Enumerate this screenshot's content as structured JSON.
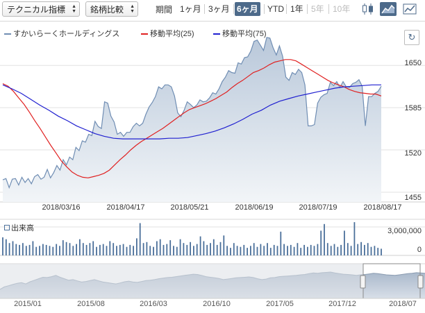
{
  "toolbar": {
    "technical_label": "テクニカル指標",
    "compare_label": "銘柄比較",
    "period_label": "期間",
    "ranges": [
      {
        "label": "1ヶ月",
        "state": "normal"
      },
      {
        "label": "3ヶ月",
        "state": "normal"
      },
      {
        "label": "6ヶ月",
        "state": "active"
      },
      {
        "label": "YTD",
        "state": "normal"
      },
      {
        "label": "1年",
        "state": "normal"
      },
      {
        "label": "5年",
        "state": "disabled"
      },
      {
        "label": "10年",
        "state": "disabled"
      }
    ],
    "chart_type_icons": [
      "candlestick-icon",
      "mountain-chart-icon",
      "line-chart-icon"
    ],
    "active_chart_type": "mountain-chart-icon"
  },
  "refresh_icon": "refresh-icon",
  "colors": {
    "price": "#6f8db3",
    "ma25": "#e02020",
    "ma75": "#1f1fd0",
    "volume": "#4a6f9a",
    "active": "#4d6a8a"
  },
  "chart_data": [
    {
      "type": "area",
      "series": [
        {
          "name": "すかいらーくホールディングス",
          "color": "#6f8db3",
          "values": [
            1474,
            1476,
            1462,
            1475,
            1476,
            1466,
            1478,
            1470,
            1476,
            1468,
            1479,
            1482,
            1475,
            1478,
            1490,
            1477,
            1485,
            1496,
            1489,
            1505,
            1497,
            1509,
            1505,
            1524,
            1519,
            1534,
            1532,
            1544,
            1542,
            1564,
            1556,
            1553,
            1594,
            1592,
            1572,
            1563,
            1544,
            1547,
            1541,
            1547,
            1547,
            1556,
            1561,
            1557,
            1561,
            1575,
            1586,
            1593,
            1602,
            1617,
            1614,
            1620,
            1620,
            1617,
            1603,
            1577,
            1571,
            1581,
            1594,
            1590,
            1585,
            1589,
            1597,
            1594,
            1595,
            1600,
            1608,
            1606,
            1614,
            1625,
            1632,
            1642,
            1639,
            1638,
            1654,
            1652,
            1662,
            1663,
            1672,
            1687,
            1689,
            1681,
            1673,
            1693,
            1692,
            1677,
            1666,
            1680,
            1664,
            1632,
            1627,
            1639,
            1636,
            1644,
            1639,
            1620,
            1557,
            1557,
            1559,
            1592,
            1601,
            1605,
            1607,
            1624,
            1619,
            1625,
            1616,
            1625,
            1617,
            1616,
            1622,
            1624,
            1628,
            1618,
            1557,
            1602,
            1602,
            1607,
            1610,
            1618
          ]
        },
        {
          "name": "移動平均(25)",
          "color": "#e02020",
          "values": [
            1622,
            1618,
            1610,
            1600,
            1590,
            1578,
            1565,
            1553,
            1540,
            1527,
            1515,
            1503,
            1494,
            1486,
            1481,
            1478,
            1477,
            1479,
            1481,
            1484,
            1489,
            1497,
            1505,
            1512,
            1520,
            1527,
            1533,
            1538,
            1543,
            1548,
            1553,
            1559,
            1565,
            1571,
            1577,
            1582,
            1585,
            1588,
            1591,
            1595,
            1599,
            1604,
            1609,
            1616,
            1622,
            1627,
            1633,
            1639,
            1642,
            1646,
            1651,
            1655,
            1657,
            1659,
            1659,
            1657,
            1652,
            1647,
            1642,
            1637,
            1632,
            1627,
            1623,
            1620,
            1617,
            1613,
            1610,
            1608,
            1607,
            1606,
            1606,
            1603
          ]
        },
        {
          "name": "移動平均(75)",
          "color": "#1f1fd0",
          "values": [
            1620,
            1614,
            1607,
            1598,
            1589,
            1581,
            1572,
            1565,
            1557,
            1551,
            1545,
            1541,
            1538,
            1537,
            1537,
            1537,
            1537,
            1537,
            1538,
            1538,
            1539,
            1542,
            1545,
            1549,
            1554,
            1560,
            1567,
            1575,
            1581,
            1589,
            1595,
            1599,
            1603,
            1606,
            1609,
            1612,
            1615,
            1617,
            1618,
            1619,
            1620,
            1620
          ]
        }
      ],
      "yticks": [
        1455,
        1520,
        1585,
        1650
      ],
      "ylim": [
        1440,
        1710
      ],
      "xticks": [
        "2018/03/16",
        "2018/04/17",
        "2018/05/21",
        "2018/06/19",
        "2018/07/19",
        "2018/08/17"
      ],
      "grid": true
    },
    {
      "type": "bar",
      "ylabel": "出来高",
      "yticks": [
        0,
        3000000
      ],
      "ylim": [
        0,
        3800000
      ],
      "values": [
        1900000,
        1700000,
        1300000,
        1500000,
        1200000,
        1100000,
        1300000,
        1000000,
        1100000,
        1500000,
        900000,
        1000000,
        1200000,
        1100000,
        1000000,
        900000,
        1200000,
        1000000,
        1600000,
        1400000,
        1300000,
        1000000,
        1200000,
        1700000,
        1300000,
        1100000,
        1300000,
        1500000,
        900000,
        1100000,
        1200000,
        1000000,
        1500000,
        1300000,
        1000000,
        1100000,
        1200000,
        900000,
        1100000,
        1000000,
        1800000,
        3400000,
        1300000,
        1400000,
        1000000,
        900000,
        1500000,
        1700000,
        1100000,
        1200000,
        1600000,
        1000000,
        900000,
        1700000,
        1300000,
        1100000,
        1400000,
        1000000,
        1200000,
        2000000,
        1500000,
        1100000,
        1300000,
        1700000,
        1100000,
        1400000,
        2100000,
        1000000,
        800000,
        1300000,
        1000000,
        900000,
        1100000,
        800000,
        1000000,
        1300000,
        900000,
        1200000,
        1000000,
        1300000,
        800000,
        1100000,
        1000000,
        2500000,
        1200000,
        1000000,
        1100000,
        900000,
        1300000,
        800000,
        1100000,
        900000,
        1100000,
        1000000,
        1200000,
        2600000,
        3300000,
        1300000,
        1000000,
        1200000,
        900000,
        1100000,
        2600000,
        1300000,
        1000000,
        3500000,
        1200000,
        1400000,
        1100000,
        1300000,
        900000,
        1000000,
        800000,
        700000
      ]
    },
    {
      "type": "area",
      "role": "navigator",
      "xticks": [
        "2015/01",
        "2015/08",
        "2016/03",
        "2016/10",
        "2017/05",
        "2017/12",
        "2018/07"
      ],
      "values": [
        1300,
        1380,
        1420,
        1460,
        1500,
        1520,
        1480,
        1550,
        1600,
        1650,
        1700,
        1690,
        1720,
        1760,
        1700,
        1650,
        1600,
        1620,
        1580,
        1540,
        1560,
        1590,
        1620,
        1580,
        1540,
        1520,
        1500,
        1480,
        1510,
        1550,
        1570,
        1540,
        1530,
        1560,
        1590,
        1600,
        1620,
        1650,
        1670,
        1690,
        1700,
        1720,
        1740,
        1760,
        1780,
        1800,
        1790,
        1760,
        1720,
        1700,
        1680,
        1660,
        1620,
        1640,
        1660,
        1680,
        1690,
        1700,
        1710,
        1690,
        1650,
        1620,
        1640,
        1680,
        1690,
        1720,
        1730,
        1740,
        1750,
        1760,
        1780,
        1790,
        1820,
        1840,
        1830,
        1850,
        1860,
        1870,
        1840,
        1820,
        1800,
        1790,
        1780,
        1760,
        1780,
        1790,
        1810,
        1830,
        1820,
        1800,
        1780,
        1770,
        1760,
        1780,
        1800,
        1820,
        1830,
        1850,
        1840,
        1830
      ],
      "ylim": [
        1000,
        2100
      ]
    }
  ]
}
